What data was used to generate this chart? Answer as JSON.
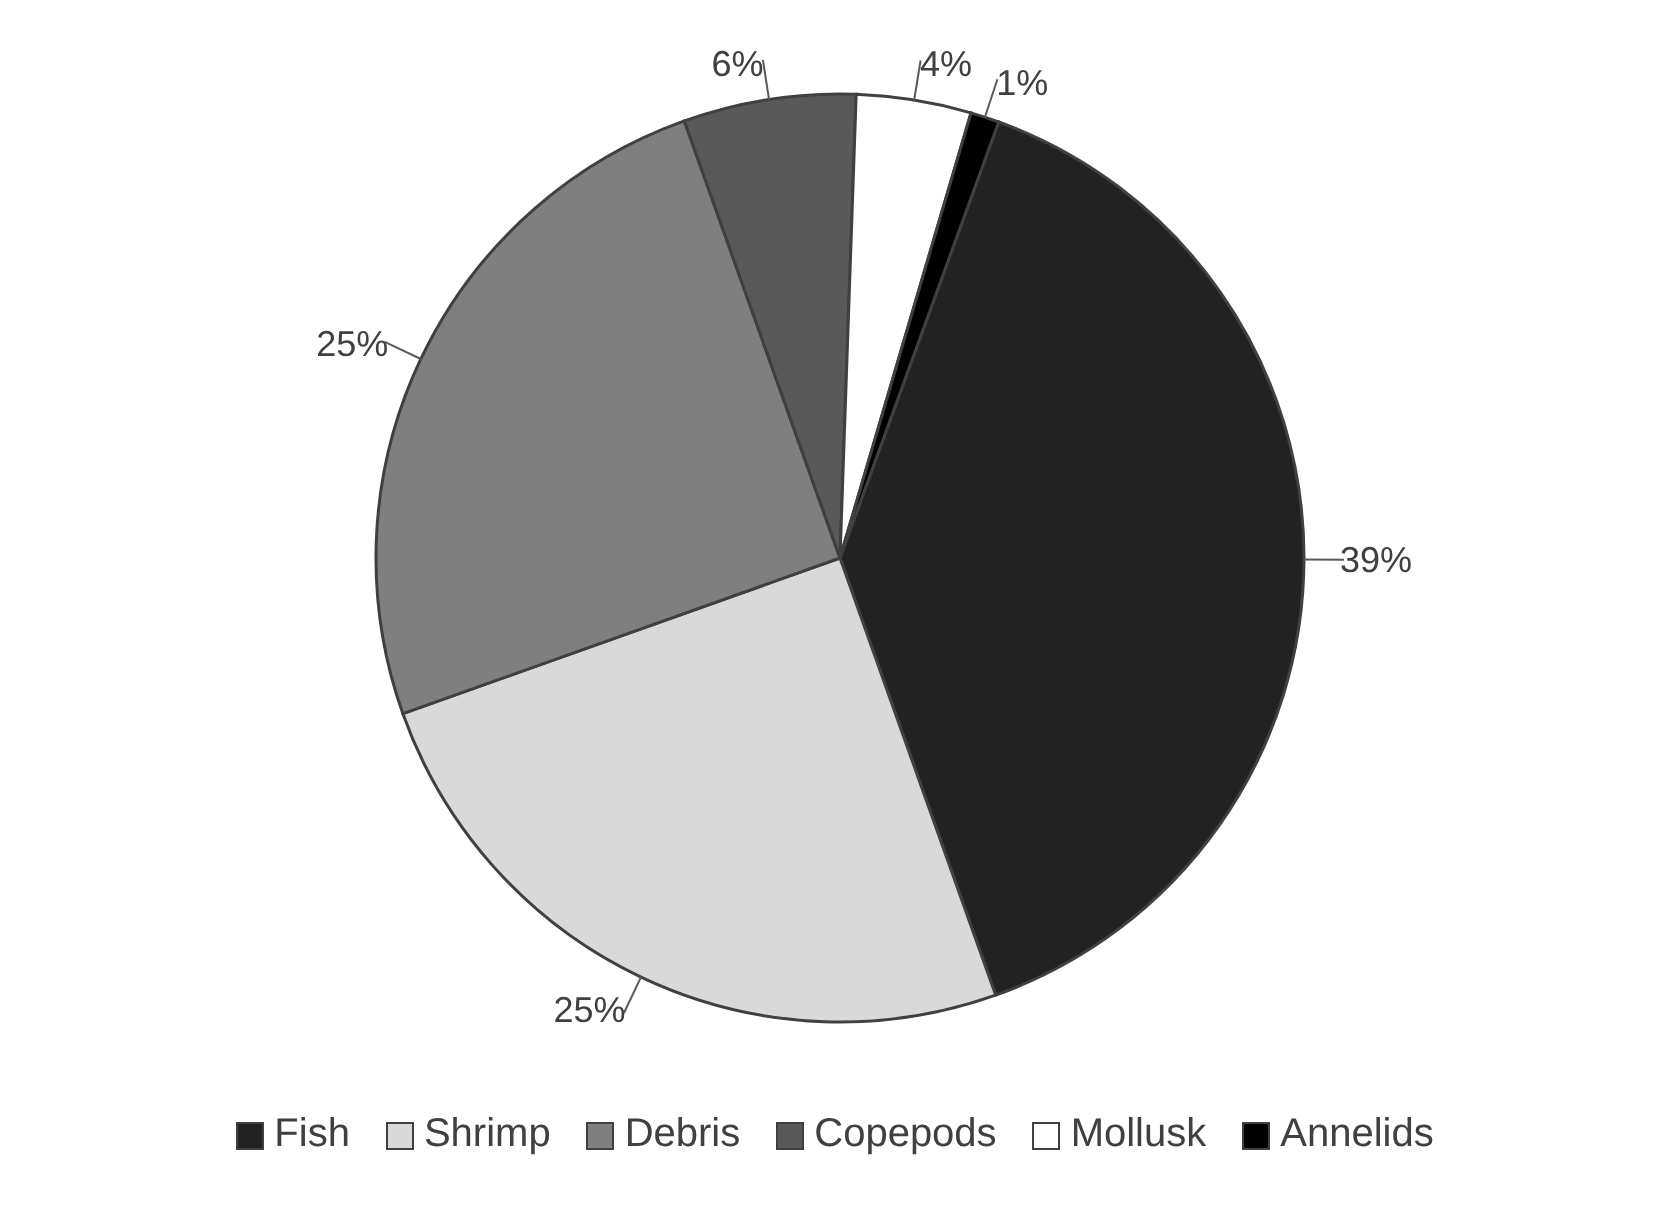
{
  "chart_data": {
    "type": "pie",
    "categories": [
      "Fish",
      "Shrimp",
      "Debris",
      "Copepods",
      "Mollusk",
      "Annelids"
    ],
    "values": [
      39,
      25,
      25,
      6,
      4,
      1
    ],
    "value_labels": [
      "39%",
      "25%",
      "25%",
      "6%",
      "4%",
      "1%"
    ],
    "colors": [
      "#222222",
      "#d9d9d9",
      "#7f7f7f",
      "#595959",
      "#ffffff",
      "#000000"
    ],
    "legend": "bottom"
  }
}
